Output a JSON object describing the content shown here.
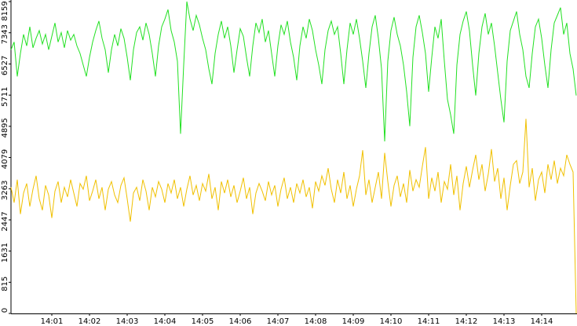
{
  "chart_data": {
    "type": "line",
    "categories": [
      null,
      null,
      null,
      null,
      null,
      null,
      null,
      null,
      null,
      null,
      null,
      null,
      null,
      "14:01",
      null,
      null,
      null,
      null,
      null,
      null,
      null,
      null,
      null,
      null,
      null,
      "14:02",
      null,
      null,
      null,
      null,
      null,
      null,
      null,
      null,
      null,
      null,
      null,
      "14:03",
      null,
      null,
      null,
      null,
      null,
      null,
      null,
      null,
      null,
      null,
      null,
      "14:04",
      null,
      null,
      null,
      null,
      null,
      null,
      null,
      null,
      null,
      null,
      null,
      "14:05",
      null,
      null,
      null,
      null,
      null,
      null,
      null,
      null,
      null,
      null,
      null,
      "14:06",
      null,
      null,
      null,
      null,
      null,
      null,
      null,
      null,
      null,
      null,
      null,
      "14:07",
      null,
      null,
      null,
      null,
      null,
      null,
      null,
      null,
      null,
      null,
      null,
      "14:08",
      null,
      null,
      null,
      null,
      null,
      null,
      null,
      null,
      null,
      null,
      null,
      "14:09",
      null,
      null,
      null,
      null,
      null,
      null,
      null,
      null,
      null,
      null,
      null,
      "14:10",
      null,
      null,
      null,
      null,
      null,
      null,
      null,
      null,
      null,
      null,
      null,
      "14:11",
      null,
      null,
      null,
      null,
      null,
      null,
      null,
      null,
      null,
      null,
      null,
      "14:12",
      null,
      null,
      null,
      null,
      null,
      null,
      null,
      null,
      null,
      null,
      null,
      "14:13",
      null,
      null,
      null,
      null,
      null,
      null,
      null,
      null,
      null,
      null,
      null,
      "14:14",
      null,
      null,
      null,
      null,
      null,
      null,
      null,
      null,
      null,
      null,
      null
    ],
    "series": [
      {
        "color": "#22e022",
        "values": [
          6900,
          7100,
          6200,
          6800,
          7300,
          7000,
          7500,
          6950,
          7200,
          7400,
          7050,
          7300,
          6900,
          7250,
          7600,
          7100,
          7350,
          6950,
          7400,
          7150,
          7300,
          7000,
          6800,
          6500,
          6200,
          6700,
          7100,
          7400,
          7650,
          7200,
          6900,
          6300,
          6900,
          7300,
          7000,
          7450,
          7200,
          6700,
          6100,
          6900,
          7350,
          7500,
          7150,
          7600,
          7300,
          6800,
          6200,
          7000,
          7500,
          7700,
          7950,
          7400,
          7100,
          6600,
          4700,
          6500,
          8159,
          7700,
          7400,
          7800,
          7550,
          7200,
          6900,
          6400,
          6000,
          6800,
          7300,
          7650,
          7200,
          7500,
          7000,
          6300,
          6900,
          7450,
          7250,
          6700,
          6200,
          7000,
          7600,
          7350,
          7700,
          7100,
          7400,
          6800,
          6200,
          7000,
          7550,
          7300,
          7650,
          7100,
          6700,
          6100,
          7000,
          7500,
          7200,
          7700,
          7400,
          6900,
          6500,
          6000,
          6900,
          7400,
          7650,
          7300,
          7500,
          6800,
          6000,
          6900,
          7600,
          7300,
          7700,
          7200,
          6600,
          5900,
          6800,
          7500,
          7800,
          7200,
          6400,
          4500,
          6600,
          7400,
          7750,
          7300,
          7000,
          6500,
          5800,
          4900,
          6700,
          7500,
          7800,
          7350,
          6800,
          5800,
          6700,
          7500,
          7200,
          7700,
          6600,
          5600,
          5200,
          4700,
          6500,
          7300,
          7650,
          7900,
          7400,
          6500,
          5700,
          6800,
          7500,
          7850,
          7300,
          7600,
          7000,
          6300,
          5600,
          5000,
          6600,
          7400,
          7650,
          7900,
          7300,
          6900,
          6200,
          5900,
          6800,
          7500,
          7700,
          7200,
          6500,
          5900,
          6900,
          7600,
          7800,
          8000,
          7300,
          7600,
          6800,
          6400,
          5700
        ]
      },
      {
        "color": "#f0c000",
        "values": [
          3300,
          2900,
          3500,
          2600,
          3150,
          3400,
          2800,
          3250,
          3600,
          3000,
          2700,
          3350,
          3100,
          2500,
          3200,
          3450,
          2900,
          3300,
          3050,
          3500,
          3150,
          2800,
          3400,
          3250,
          3600,
          2950,
          3200,
          3500,
          3000,
          3300,
          2700,
          3250,
          3450,
          3100,
          2900,
          3350,
          3550,
          3000,
          2400,
          3150,
          3300,
          2950,
          3500,
          3200,
          2700,
          3300,
          3050,
          3450,
          3250,
          2900,
          3400,
          3150,
          3500,
          3000,
          3300,
          2800,
          3250,
          3600,
          3100,
          3350,
          2950,
          3400,
          3200,
          3650,
          3000,
          3300,
          2700,
          3450,
          3150,
          3500,
          3050,
          3350,
          2900,
          3200,
          3550,
          3000,
          3300,
          2600,
          3150,
          3400,
          3200,
          2950,
          3450,
          3100,
          3350,
          2800,
          3250,
          3550,
          3000,
          3300,
          2900,
          3400,
          3150,
          3500,
          3050,
          3300,
          2750,
          3450,
          3200,
          3600,
          3350,
          3800,
          3250,
          2900,
          3500,
          3150,
          3700,
          3000,
          3350,
          2800,
          3250,
          3600,
          4270,
          3100,
          3500,
          2900,
          3300,
          3700,
          3000,
          4200,
          3450,
          2800,
          3350,
          3600,
          3050,
          3400,
          2900,
          3750,
          3200,
          3500,
          3300,
          3850,
          4350,
          3000,
          3550,
          3200,
          3700,
          2900,
          3450,
          3250,
          3900,
          3100,
          3600,
          2700,
          3400,
          3850,
          3300,
          3750,
          4150,
          3500,
          3900,
          3200,
          3650,
          4300,
          3450,
          3800,
          3000,
          3550,
          2700,
          3350,
          3900,
          4000,
          3400,
          3700,
          5090,
          3300,
          3800,
          2950,
          3500,
          3700,
          3150,
          3900,
          3500,
          4000,
          3400,
          3800,
          3600,
          4150,
          3900,
          3700,
          0
        ]
      }
    ],
    "ylim": [
      0,
      8159
    ],
    "yticks": [
      0,
      815,
      1631,
      2447,
      3263,
      4079,
      4895,
      5711,
      6527,
      7343,
      8159
    ]
  }
}
